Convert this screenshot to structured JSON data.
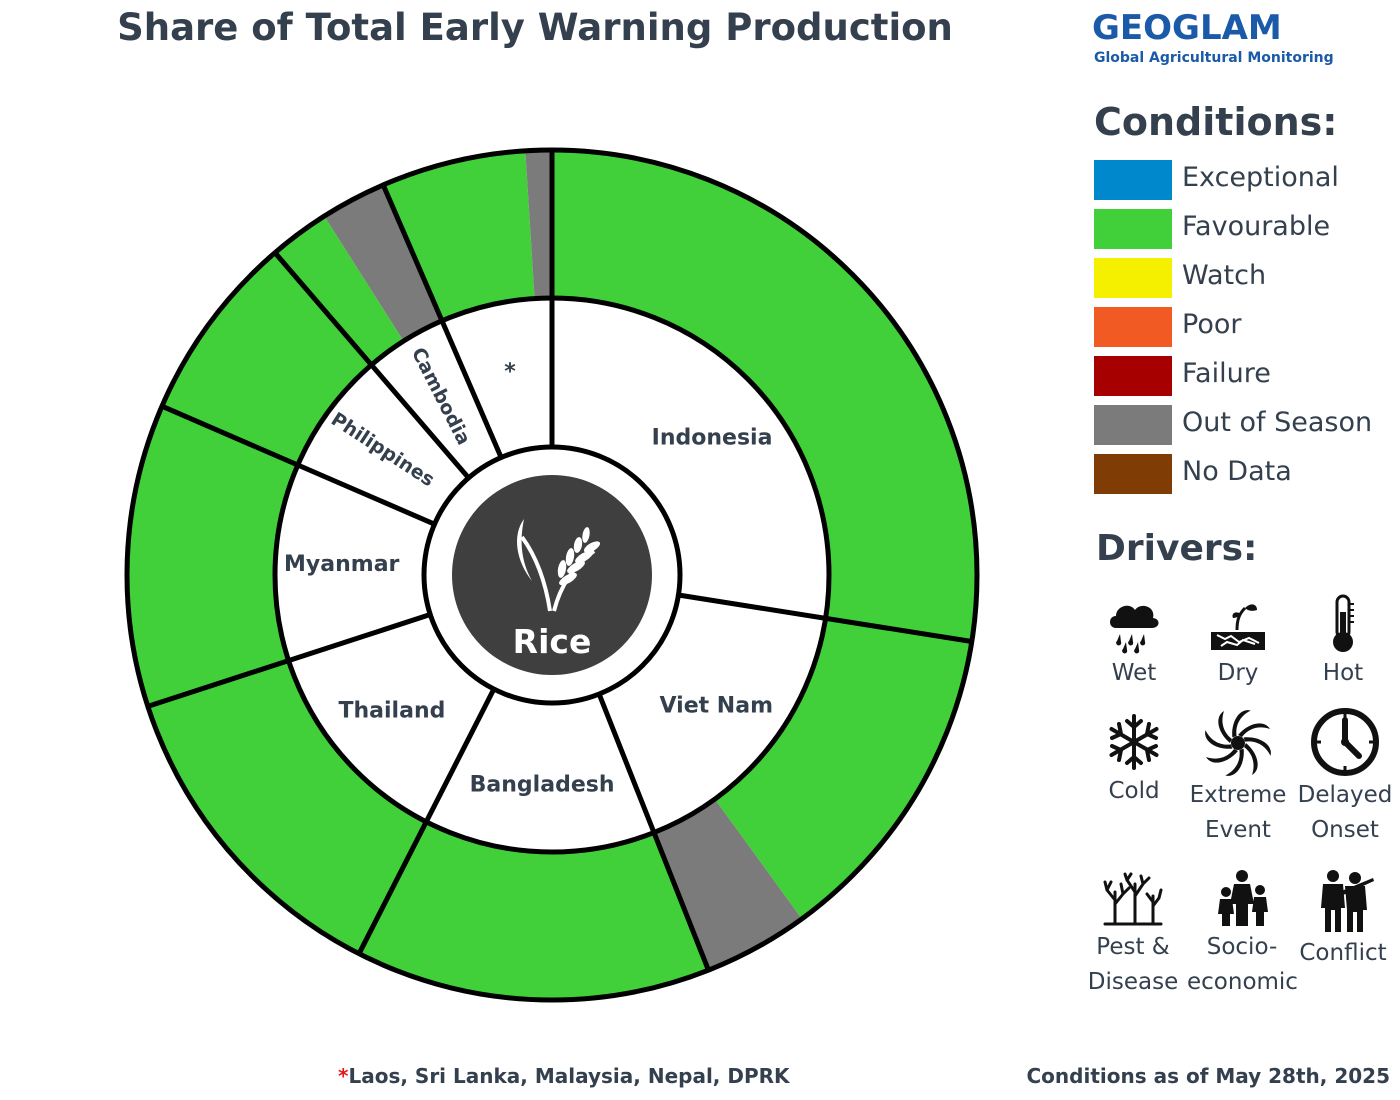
{
  "title": "Share of Total Early Warning Production",
  "logo": {
    "word": "GEOGLAM",
    "subtitle": "Global Agricultural Monitoring"
  },
  "center": {
    "label": "Rice",
    "icon": "rice-plant-icon"
  },
  "chart_data": {
    "type": "pie",
    "title": "Share of Total Early Warning Production",
    "inner_ring": [
      {
        "name": "Indonesia",
        "share": 27.5
      },
      {
        "name": "Viet Nam",
        "share": 16.5
      },
      {
        "name": "Bangladesh",
        "share": 13.5
      },
      {
        "name": "Thailand",
        "share": 12.5
      },
      {
        "name": "Myanmar",
        "share": 11.5
      },
      {
        "name": "Philippines",
        "share": 7.2
      },
      {
        "name": "Cambodia",
        "share": 4.8
      },
      {
        "name": "*",
        "share": 6.5
      }
    ],
    "outer_ring": [
      {
        "country": "Indonesia",
        "condition": "Favourable",
        "share": 27.5
      },
      {
        "country": "Viet Nam",
        "condition": "Favourable",
        "share": 12.5
      },
      {
        "country": "Viet Nam",
        "condition": "Out of Season",
        "share": 4.0
      },
      {
        "country": "Bangladesh",
        "condition": "Favourable",
        "share": 13.5
      },
      {
        "country": "Thailand",
        "condition": "Favourable",
        "share": 12.5
      },
      {
        "country": "Myanmar",
        "condition": "Favourable",
        "share": 11.5
      },
      {
        "country": "Philippines",
        "condition": "Favourable",
        "share": 7.2
      },
      {
        "country": "Cambodia",
        "condition": "Favourable",
        "share": 2.3
      },
      {
        "country": "Cambodia",
        "condition": "Out of Season",
        "share": 2.5
      },
      {
        "country": "*",
        "condition": "Favourable",
        "share": 5.5
      },
      {
        "country": "*",
        "condition": "Out of Season",
        "share": 1.0
      }
    ],
    "legend_placement": "right"
  },
  "conditions": {
    "title": "Conditions:",
    "items": [
      {
        "label": "Exceptional",
        "color": "#0088cc"
      },
      {
        "label": "Favourable",
        "color": "#42d03a"
      },
      {
        "label": "Watch",
        "color": "#f4f000"
      },
      {
        "label": "Poor",
        "color": "#f25a23"
      },
      {
        "label": "Failure",
        "color": "#a60000"
      },
      {
        "label": "Out of Season",
        "color": "#7b7b7b"
      },
      {
        "label": "No Data",
        "color": "#7f3c05"
      }
    ]
  },
  "drivers": {
    "title": "Drivers:",
    "items": [
      {
        "label_lines": [
          "Wet"
        ],
        "icon": "rain-cloud-icon"
      },
      {
        "label_lines": [
          "Dry"
        ],
        "icon": "dry-soil-icon"
      },
      {
        "label_lines": [
          "Hot"
        ],
        "icon": "thermometer-icon"
      },
      {
        "label_lines": [
          "Cold"
        ],
        "icon": "snowflake-icon"
      },
      {
        "label_lines": [
          "Extreme",
          "Event"
        ],
        "icon": "cyclone-icon"
      },
      {
        "label_lines": [
          "Delayed",
          "Onset"
        ],
        "icon": "clock-icon"
      },
      {
        "label_lines": [
          "Pest &",
          "Disease"
        ],
        "icon": "dead-trees-icon"
      },
      {
        "label_lines": [
          "Socio-",
          "economic"
        ],
        "icon": "family-icon"
      },
      {
        "label_lines": [
          "Conflict"
        ],
        "icon": "soldiers-icon"
      }
    ]
  },
  "footnote": {
    "star": "*",
    "text": "Laos, Sri Lanka, Malaysia, Nepal, DPRK"
  },
  "as_of": "Conditions as of May 28th, 2025"
}
